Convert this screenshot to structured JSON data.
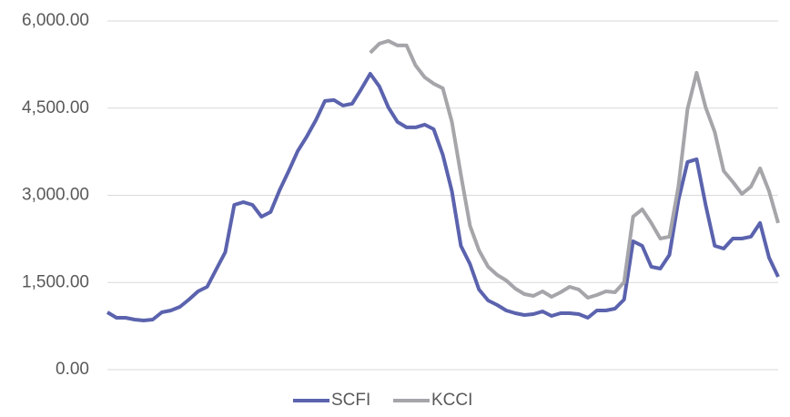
{
  "chart_data": {
    "type": "line",
    "categories": [
      null,
      null,
      null,
      null,
      null,
      null,
      null,
      null,
      null,
      null,
      null,
      null,
      null,
      null,
      null,
      null,
      null,
      null,
      null,
      null,
      null,
      null,
      null,
      null,
      null,
      null,
      null,
      null,
      null,
      null,
      null,
      null,
      null,
      null,
      null,
      null,
      null,
      null,
      null,
      null,
      null,
      null,
      null,
      null,
      null,
      null,
      null,
      null,
      null,
      null,
      null,
      null,
      null,
      null,
      null,
      null,
      null,
      null,
      null,
      null,
      null,
      null,
      null,
      null,
      null,
      null,
      null,
      null,
      null,
      null,
      null,
      null,
      null,
      null,
      null
    ],
    "series": [
      {
        "name": "SCFI",
        "color": "#5b63ae",
        "values": [
          987,
          893,
          893,
          862,
          846,
          862,
          987,
          1019,
          1081,
          1207,
          1348,
          1426,
          1724,
          2021,
          2836,
          2883,
          2836,
          2632,
          2711,
          3087,
          3416,
          3761,
          4012,
          4294,
          4623,
          4638,
          4544,
          4576,
          4826,
          5092,
          4873,
          4513,
          4262,
          4168,
          4168,
          4215,
          4137,
          3698,
          3071,
          2131,
          1818,
          1379,
          1191,
          1113,
          1019,
          972,
          940,
          956,
          1003,
          925,
          972,
          972,
          956,
          893,
          1019,
          1019,
          1050,
          1207,
          2209,
          2131,
          1771,
          1739,
          1974,
          2915,
          3573,
          3620,
          2836,
          2131,
          2084,
          2256,
          2256,
          2288,
          2523,
          1927,
          1598
        ]
      },
      {
        "name": "KCCI",
        "color": "#a5a5aa",
        "values": [
          null,
          null,
          null,
          null,
          null,
          null,
          null,
          null,
          null,
          null,
          null,
          null,
          null,
          null,
          null,
          null,
          null,
          null,
          null,
          null,
          null,
          null,
          null,
          null,
          null,
          null,
          null,
          null,
          null,
          5453,
          5610,
          5657,
          5579,
          5579,
          5234,
          5030,
          4920,
          4842,
          4262,
          3353,
          2476,
          2053,
          1771,
          1630,
          1536,
          1395,
          1301,
          1269,
          1348,
          1254,
          1332,
          1426,
          1379,
          1238,
          1285,
          1348,
          1332,
          1504,
          2633,
          2758,
          2523,
          2256,
          2288,
          3150,
          4482,
          5108,
          4513,
          4090,
          3416,
          3228,
          3024,
          3150,
          3463,
          3071,
          2523
        ]
      }
    ],
    "ylim": [
      0,
      6000
    ],
    "yticks": [
      {
        "value": 0,
        "label": "0.00"
      },
      {
        "value": 1500,
        "label": "1,500.00"
      },
      {
        "value": 3000,
        "label": "3,000.00"
      },
      {
        "value": 4500,
        "label": "4,500.00"
      },
      {
        "value": 6000,
        "label": "6,000.00"
      }
    ],
    "grid": true,
    "legend": "bottom"
  }
}
